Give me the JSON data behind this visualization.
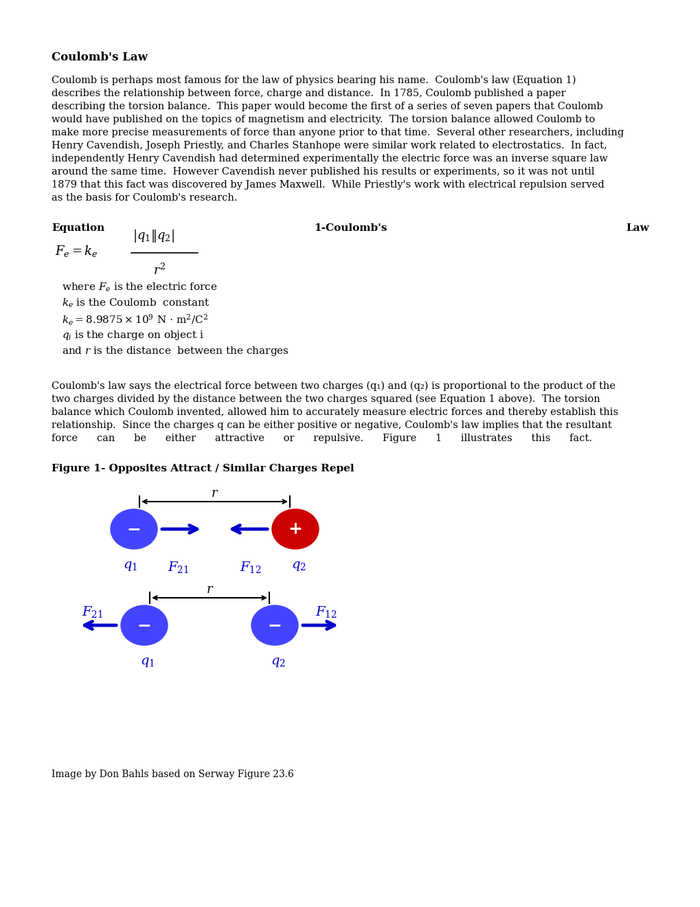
{
  "title": "Coulomb's Law",
  "bg_color": "#ffffff",
  "text_color": "#000000",
  "blue_color": "#0000cc",
  "blue_charge_color": "#4444ff",
  "red_charge_color": "#cc0000",
  "link_color": "#0000ff",
  "paragraph1": "Coulomb is perhaps most famous for the law of physics bearing his name.  Coulomb's law (Equation 1)\ndescribes the relationship between force, charge and distance.  In 1785, Coulomb published a paper\ndescribing the torsion balance.  This paper would become the first of a series of seven papers that Coulomb\nwould have published on the topics of magnetism and electricity.  The torsion balance allowed Coulomb to\nmake more precise measurements of force than anyone prior to that time.  Several other researchers, including\nHenry Cavendish, Joseph Priestly, and Charles Stanhope were similar work related to electrostatics.  In fact,\nindependently Henry Cavendish had determined experimentally the electric force was an inverse square law\naround the same time.  However Cavendish never published his results or experiments, so it was not until\n1879 that this fact was discovered by James Maxwell.  While Priestly's work with electrical repulsion served\nas the basis for Coulomb's research.",
  "eq_label_left": "Equation",
  "eq_label_center": "1-Coulomb's",
  "eq_label_right": "Law",
  "paragraph2": "Coulomb's law says the electrical force between two charges (q₁) and (q₂) is proportional to the product of the\ntwo charges divided by the distance between the two charges squared (see Equation 1 above).  The torsion\nbalance which Coulomb invented, allowed him to accurately measure electric forces and thereby establish this\nrelationship.  Since the charges q can be either positive or negative, Coulomb's law implies that the resultant\nforce      can      be      either      attractive      or      repulsive.      Figure      1      illustrates      this      fact.",
  "fig_label": "Figure 1- Opposites Attract / Similar Charges Repel",
  "image_credit": "Image by Don Bahls based on Serway Figure 23.6"
}
